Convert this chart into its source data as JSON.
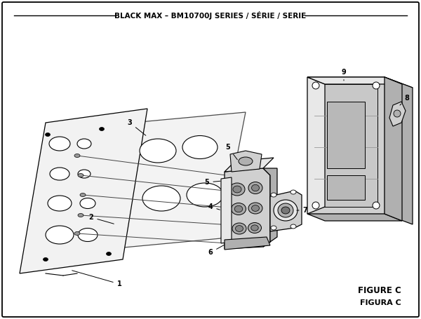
{
  "title": "BLACK MAX – BM10700J SERIES / SÉRIE / SERIE",
  "figure_label": "FIGURE C",
  "figura_label": "FIGURA C",
  "bg_color": "#ffffff",
  "line_color": "#000000",
  "title_fontsize": 7.5,
  "label_fontsize": 7,
  "figure_label_fontsize": 8.5,
  "gray_light": "#e8e8e8",
  "gray_mid": "#d0d0d0",
  "gray_dark": "#b0b0b0",
  "white": "#ffffff"
}
